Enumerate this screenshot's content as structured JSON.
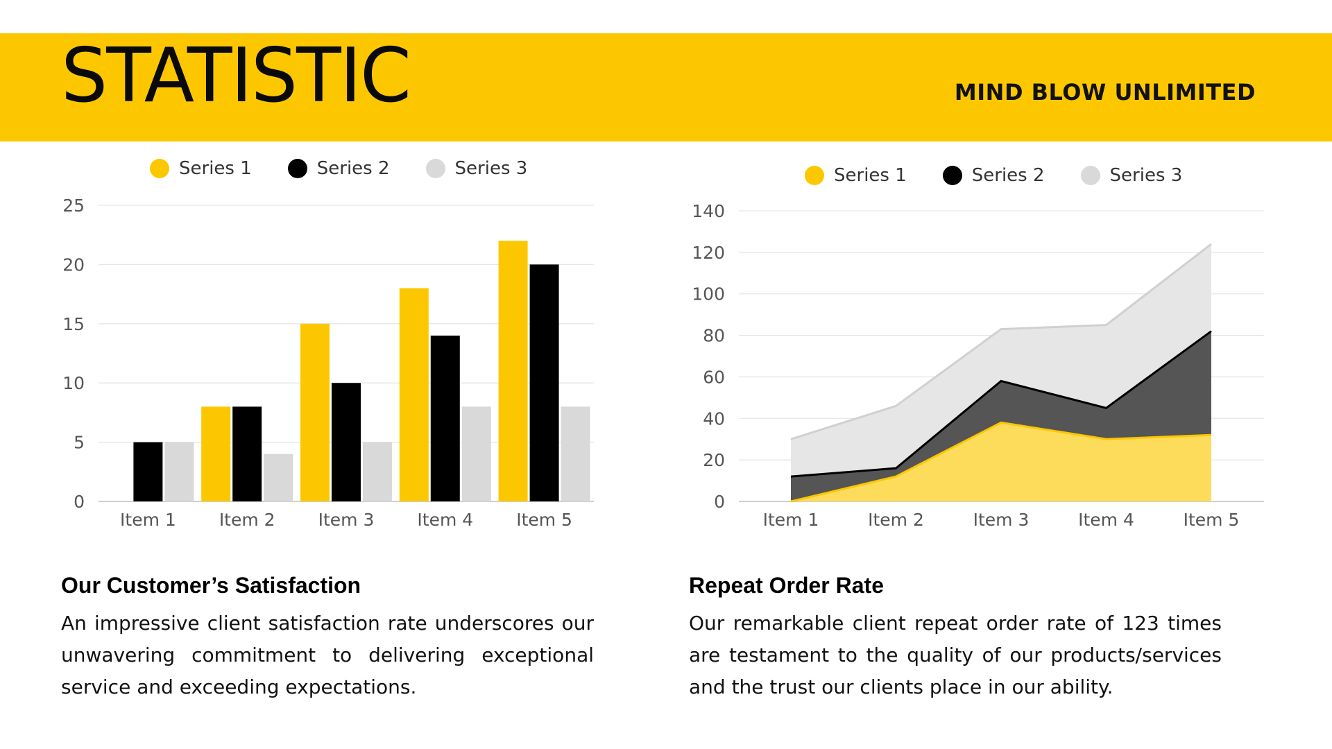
{
  "header": {
    "title": "STATISTIC",
    "brand": "MIND BLOW UNLIMITED",
    "color": "#FDC700"
  },
  "colors": {
    "series1": "#FDC700",
    "series1_fill": "#FDDC5C",
    "series2": "#000000",
    "series2_fill": "#555555",
    "series3": "#D9D9D9",
    "series3_fill": "#E6E6E6",
    "grid": "#E6E6E6"
  },
  "chart_data": [
    {
      "type": "bar",
      "categories": [
        "Item 1",
        "Item 2",
        "Item 3",
        "Item 4",
        "Item 5"
      ],
      "series": [
        {
          "name": "Series 1",
          "values": [
            0,
            8,
            15,
            18,
            22
          ]
        },
        {
          "name": "Series 2",
          "values": [
            5,
            8,
            10,
            14,
            20
          ]
        },
        {
          "name": "Series 3",
          "values": [
            5,
            4,
            5,
            8,
            8
          ]
        }
      ],
      "yticks": [
        0,
        5,
        10,
        15,
        20,
        25
      ],
      "ylim": [
        0,
        25
      ],
      "legend": "top-center",
      "grid": true
    },
    {
      "type": "area",
      "stacked": true,
      "categories": [
        "Item 1",
        "Item 2",
        "Item 3",
        "Item 4",
        "Item 5"
      ],
      "series": [
        {
          "name": "Series 1",
          "values": [
            0,
            12,
            38,
            30,
            32
          ]
        },
        {
          "name": "Series 2",
          "values": [
            12,
            4,
            20,
            15,
            50
          ]
        },
        {
          "name": "Series 3",
          "values": [
            18,
            30,
            25,
            40,
            42
          ]
        }
      ],
      "yticks": [
        0,
        20,
        40,
        60,
        80,
        100,
        120,
        140
      ],
      "ylim": [
        0,
        140
      ],
      "legend": "top-center",
      "grid": true
    }
  ],
  "sections": [
    {
      "title": "Our Customer’s Satisfaction",
      "body": "An impressive client satisfaction rate underscores our unwavering commitment to delivering exceptional service and exceeding expectations."
    },
    {
      "title": "Repeat Order Rate",
      "body": "Our remarkable client repeat order rate of 123 times are testament to the quality of our products/services and the trust our clients place in our ability."
    }
  ]
}
